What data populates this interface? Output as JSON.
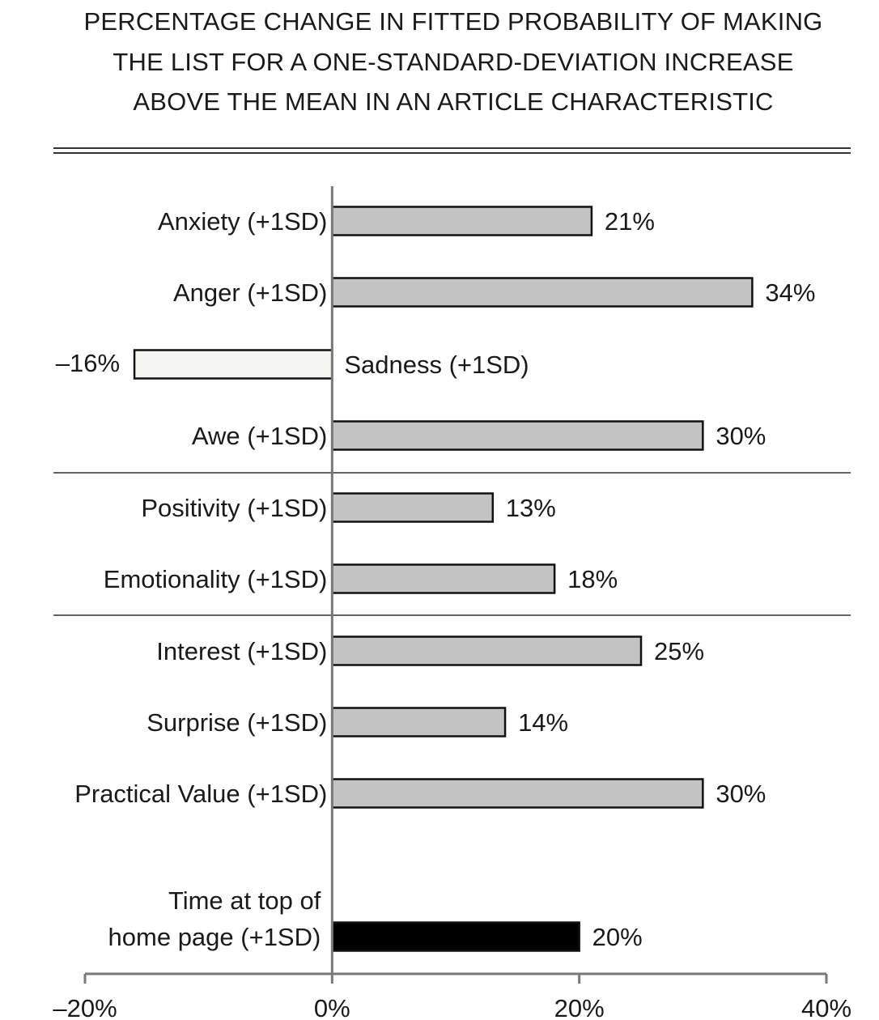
{
  "chart_data": {
    "type": "bar",
    "orientation": "horizontal",
    "title_lines": [
      "PERCENTAGE CHANGE IN FITTED PROBABILITY OF MAKING",
      "THE LIST FOR A ONE-STANDARD-DEVIATION INCREASE",
      "ABOVE THE MEAN IN AN ARTICLE CHARACTERISTIC"
    ],
    "categories": [
      [
        "Anxiety (+1SD)"
      ],
      [
        "Anger (+1SD)"
      ],
      [
        "Sadness (+1SD)"
      ],
      [
        "Awe (+1SD)"
      ],
      [
        "Positivity (+1SD)"
      ],
      [
        "Emotionality (+1SD)"
      ],
      [
        "Interest (+1SD)"
      ],
      [
        "Surprise (+1SD)"
      ],
      [
        "Practical Value (+1SD)"
      ],
      [
        "Time at top of",
        "home page (+1SD)"
      ]
    ],
    "values": [
      21,
      34,
      -16,
      30,
      13,
      18,
      25,
      14,
      30,
      20
    ],
    "value_labels": [
      "21%",
      "34%",
      "–16%",
      "30%",
      "13%",
      "18%",
      "25%",
      "14%",
      "30%",
      "20%"
    ],
    "groups": [
      [
        "Anxiety (+1SD)",
        "Anger (+1SD)",
        "Sadness (+1SD)",
        "Awe (+1SD)"
      ],
      [
        "Positivity (+1SD)",
        "Emotionality (+1SD)"
      ],
      [
        "Interest (+1SD)",
        "Surprise (+1SD)",
        "Practical Value (+1SD)"
      ],
      [
        "Time at top of home page (+1SD)"
      ]
    ],
    "xlim": [
      -20,
      40
    ],
    "xticks": [
      -20,
      0,
      20,
      40
    ],
    "xtick_labels": [
      "–20%",
      "0%",
      "20%",
      "40%"
    ],
    "grid": false,
    "legend": "none",
    "colors": {
      "positive": "#c3c3c3",
      "negative": "#f5f6f2",
      "highlight": "#000000",
      "outline": "#111111",
      "axis": "#7a7a7a",
      "separator": "#333333"
    },
    "bar_fill_roles": [
      "positive",
      "positive",
      "negative",
      "positive",
      "positive",
      "positive",
      "positive",
      "positive",
      "positive",
      "highlight"
    ]
  }
}
